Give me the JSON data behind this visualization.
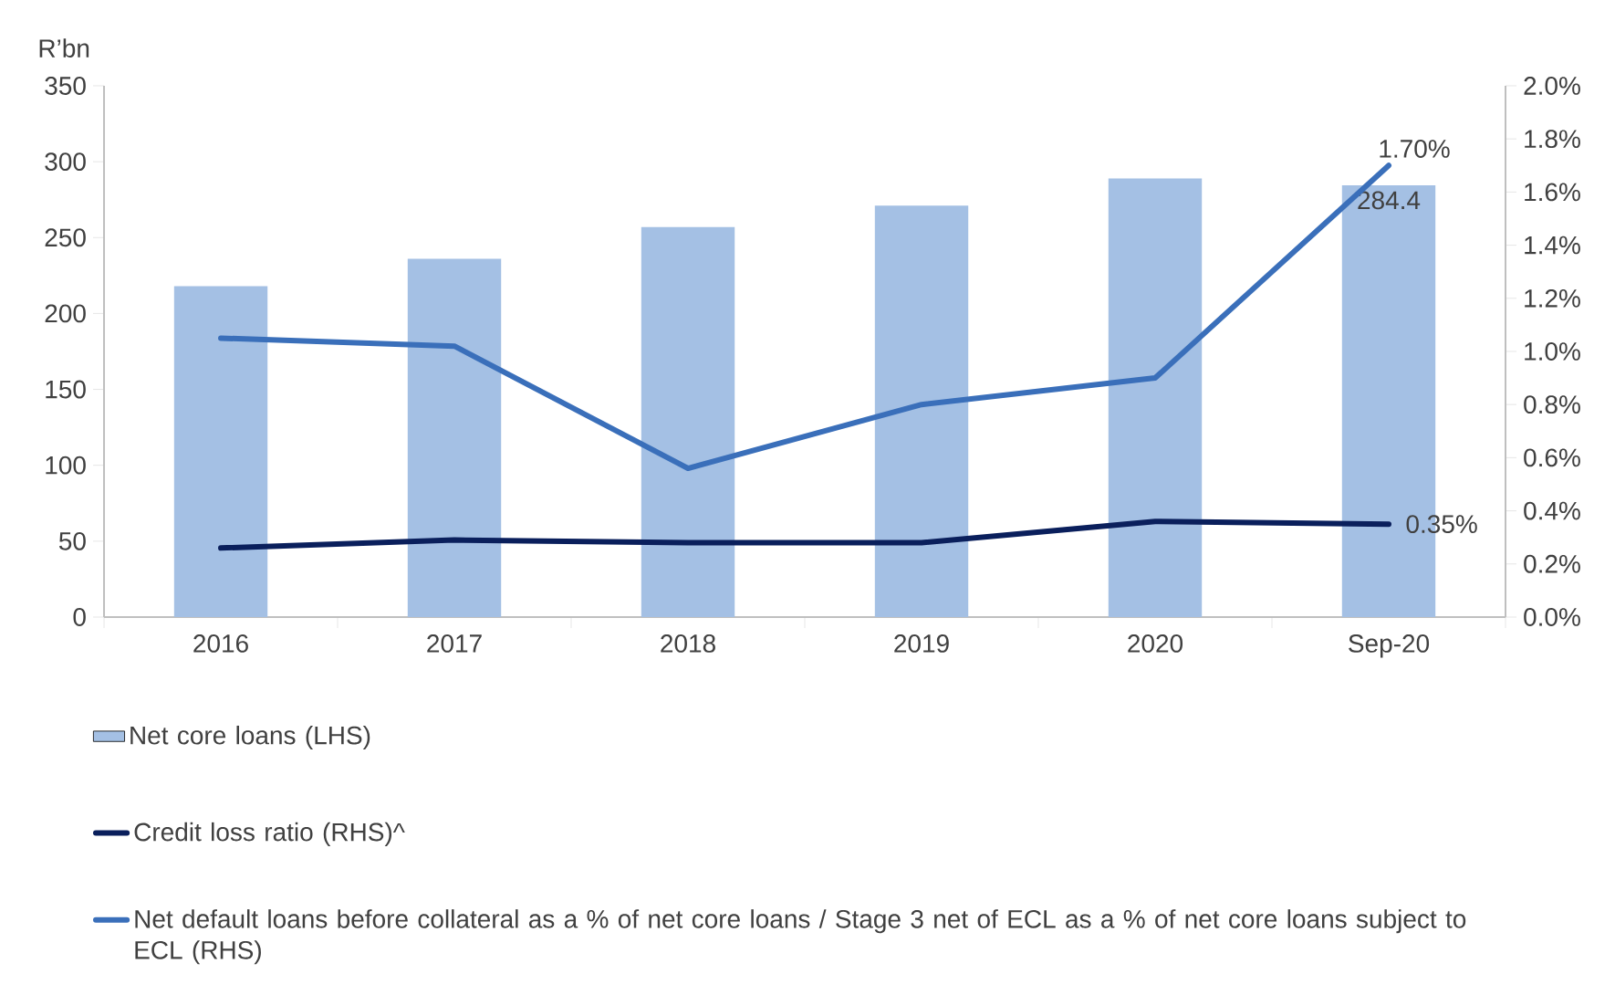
{
  "chart_data": {
    "type": "bar",
    "ylabel": "R’bn",
    "categories": [
      "2016",
      "2017",
      "2018",
      "2019",
      "2020",
      "Sep-20"
    ],
    "ylim": [
      0,
      350
    ],
    "yticks": [
      0,
      50,
      100,
      150,
      200,
      250,
      300,
      350
    ],
    "y2lim": [
      0,
      2.0
    ],
    "y2ticks": [
      {
        "value": 0,
        "label": "0.0%"
      },
      {
        "value": 0.2,
        "label": "0.2%"
      },
      {
        "value": 0.4,
        "label": "0.4%"
      },
      {
        "value": 0.6,
        "label": "0.6%"
      },
      {
        "value": 0.8,
        "label": "0.8%"
      },
      {
        "value": 1.0,
        "label": "1.0%"
      },
      {
        "value": 1.2,
        "label": "1.2%"
      },
      {
        "value": 1.4,
        "label": "1.4%"
      },
      {
        "value": 1.6,
        "label": "1.6%"
      },
      {
        "value": 1.8,
        "label": "1.8%"
      },
      {
        "value": 2.0,
        "label": "2.0%"
      }
    ],
    "legend": "bottom",
    "series": [
      {
        "name": "Net core loans (LHS)",
        "color": "#a4c0e4",
        "values": [
          218,
          236,
          257,
          271,
          289,
          284.4
        ],
        "value_labels": [
          null,
          null,
          null,
          null,
          null,
          "284.4"
        ]
      },
      {
        "name": "Credit loss ratio (RHS)^",
        "type": "line",
        "axis": "y2",
        "color": "#0a1f5c",
        "values": [
          0.26,
          0.29,
          0.28,
          0.28,
          0.36,
          0.35
        ],
        "value_labels": [
          null,
          null,
          null,
          null,
          null,
          "0.35%"
        ]
      },
      {
        "name": "Net default loans before collateral as a % of net core loans / Stage 3 net of ECL as a % of net core loans subject to ECL (RHS)",
        "type": "line",
        "axis": "y2",
        "color": "#3a6fba",
        "values": [
          1.05,
          1.02,
          0.56,
          0.8,
          0.9,
          1.7
        ],
        "value_labels": [
          null,
          null,
          null,
          null,
          null,
          "1.70%"
        ]
      }
    ]
  }
}
